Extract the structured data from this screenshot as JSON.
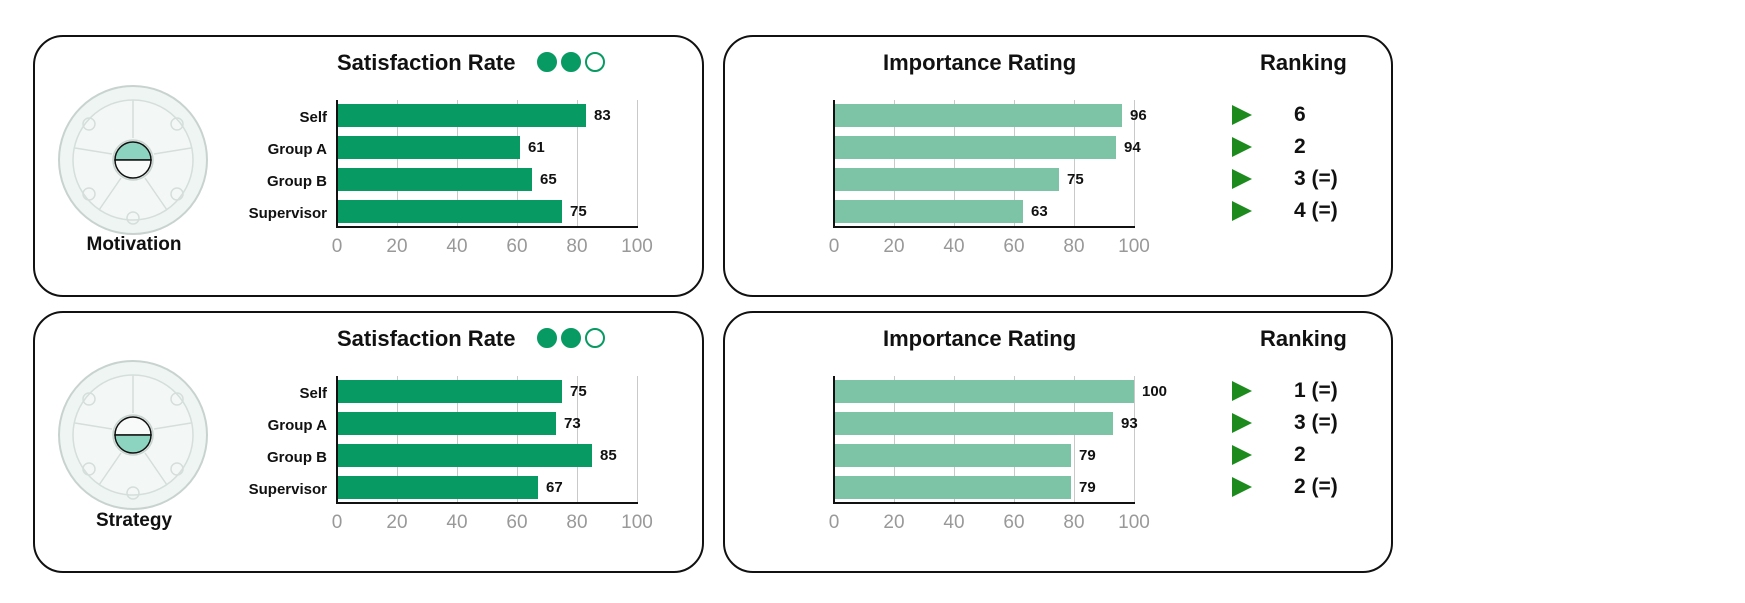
{
  "colors": {
    "satisfaction_bar": "#079a63",
    "importance_bar": "#7cc4a5",
    "arrow": "#1d8a1d",
    "icon_segment": "#8dd4c0"
  },
  "sections": [
    {
      "name": "Motivation",
      "satisfaction_title": "Satisfaction Rate",
      "satisfaction_dots": [
        true,
        true,
        false
      ],
      "importance_title": "Importance Rating",
      "ranking_title": "Ranking",
      "rankings": [
        "6",
        "2",
        "3 (=)",
        "4 (=)"
      ]
    },
    {
      "name": "Strategy",
      "satisfaction_title": "Satisfaction Rate",
      "satisfaction_dots": [
        true,
        true,
        false
      ],
      "importance_title": "Importance Rating",
      "ranking_title": "Ranking",
      "rankings": [
        "1 (=)",
        "3 (=)",
        "2",
        "2 (=)"
      ]
    }
  ],
  "chart_data": [
    {
      "type": "bar",
      "orientation": "horizontal",
      "title": "Satisfaction Rate",
      "categories": [
        "Self",
        "Group A",
        "Group B",
        "Supervisor"
      ],
      "values": [
        83,
        61,
        65,
        75
      ],
      "xlim": [
        0,
        100
      ],
      "ticks": [
        0,
        20,
        40,
        60,
        80,
        100
      ]
    },
    {
      "type": "bar",
      "orientation": "horizontal",
      "title": "Importance Rating",
      "categories": [
        "Self",
        "Group A",
        "Group B",
        "Supervisor"
      ],
      "values": [
        96,
        94,
        75,
        63
      ],
      "xlim": [
        0,
        100
      ],
      "ticks": [
        0,
        20,
        40,
        60,
        80,
        100
      ]
    },
    {
      "type": "bar",
      "orientation": "horizontal",
      "title": "Satisfaction Rate",
      "categories": [
        "Self",
        "Group A",
        "Group B",
        "Supervisor"
      ],
      "values": [
        75,
        73,
        85,
        67
      ],
      "xlim": [
        0,
        100
      ],
      "ticks": [
        0,
        20,
        40,
        60,
        80,
        100
      ]
    },
    {
      "type": "bar",
      "orientation": "horizontal",
      "title": "Importance Rating",
      "categories": [
        "Self",
        "Group A",
        "Group B",
        "Supervisor"
      ],
      "values": [
        100,
        93,
        79,
        79
      ],
      "xlim": [
        0,
        100
      ],
      "ticks": [
        0,
        20,
        40,
        60,
        80,
        100
      ]
    }
  ]
}
